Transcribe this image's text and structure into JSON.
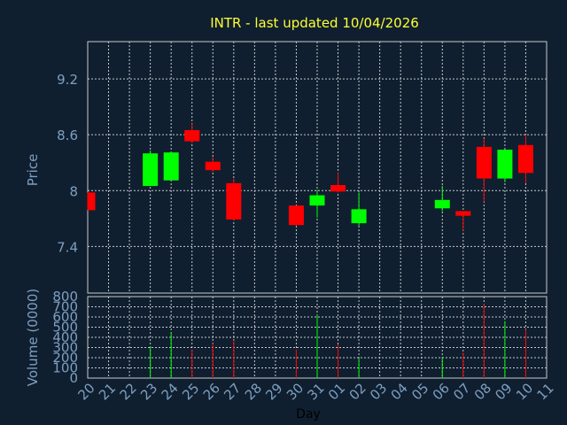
{
  "title": "INTR - last updated 10/04/2026",
  "colors": {
    "background": "#0f1f30",
    "grid": "#c8c8c8",
    "axis_text": "#7f9fbf",
    "title": "#ffff33",
    "xlabel": "#000000",
    "up": "#00ff00",
    "down": "#ff0000"
  },
  "chart_data": {
    "type": "candlestick",
    "title": "INTR - last updated 10/04/2026",
    "xlabel": "Day",
    "ylabel_price": "Price",
    "ylabel_volume": "Volume (0000)",
    "price_ylim": [
      6.9,
      9.6
    ],
    "price_ticks": [
      "9.2",
      "8.6",
      "8",
      "7.4"
    ],
    "price_tick_values": [
      9.2,
      8.6,
      8.0,
      7.4
    ],
    "volume_ylim": [
      0,
      800
    ],
    "volume_ticks": [
      "800",
      "700",
      "600",
      "500",
      "400",
      "300",
      "200",
      "100",
      "0"
    ],
    "volume_tick_values": [
      800,
      700,
      600,
      500,
      400,
      300,
      200,
      100,
      0
    ],
    "x_ticks": [
      "20",
      "21",
      "22",
      "23",
      "24",
      "25",
      "26",
      "27",
      "28",
      "29",
      "30",
      "31",
      "01",
      "02",
      "03",
      "04",
      "05",
      "06",
      "07",
      "08",
      "09",
      "10",
      "11"
    ],
    "candles": [
      {
        "day": "20",
        "open": 7.98,
        "high": 7.98,
        "low": 7.79,
        "close": 7.79,
        "volume": 0
      },
      {
        "day": "23",
        "open": 8.05,
        "high": 8.43,
        "low": 8.05,
        "close": 8.4,
        "volume": 310
      },
      {
        "day": "24",
        "open": 8.11,
        "high": 8.42,
        "low": 8.11,
        "close": 8.41,
        "volume": 450
      },
      {
        "day": "25",
        "open": 8.65,
        "high": 8.72,
        "low": 8.51,
        "close": 8.53,
        "volume": 280
      },
      {
        "day": "26",
        "open": 8.31,
        "high": 8.36,
        "low": 8.2,
        "close": 8.22,
        "volume": 340
      },
      {
        "day": "27",
        "open": 8.08,
        "high": 8.13,
        "low": 7.68,
        "close": 7.69,
        "volume": 370
      },
      {
        "day": "30",
        "open": 7.84,
        "high": 7.84,
        "low": 7.62,
        "close": 7.63,
        "volume": 280
      },
      {
        "day": "31",
        "open": 7.84,
        "high": 8.01,
        "low": 7.71,
        "close": 7.95,
        "volume": 620
      },
      {
        "day": "01",
        "open": 8.06,
        "high": 8.19,
        "low": 7.98,
        "close": 7.99,
        "volume": 330
      },
      {
        "day": "02",
        "open": 7.65,
        "high": 7.98,
        "low": 7.62,
        "close": 7.8,
        "volume": 200
      },
      {
        "day": "06",
        "open": 7.81,
        "high": 8.05,
        "low": 7.78,
        "close": 7.9,
        "volume": 210
      },
      {
        "day": "07",
        "open": 7.78,
        "high": 7.78,
        "low": 7.57,
        "close": 7.73,
        "volume": 250
      },
      {
        "day": "08",
        "open": 8.47,
        "high": 8.56,
        "low": 7.88,
        "close": 8.13,
        "volume": 730
      },
      {
        "day": "09",
        "open": 8.13,
        "high": 8.44,
        "low": 8.09,
        "close": 8.44,
        "volume": 560
      },
      {
        "day": "10",
        "open": 8.49,
        "high": 8.6,
        "low": 8.08,
        "close": 8.19,
        "volume": 480
      }
    ]
  }
}
